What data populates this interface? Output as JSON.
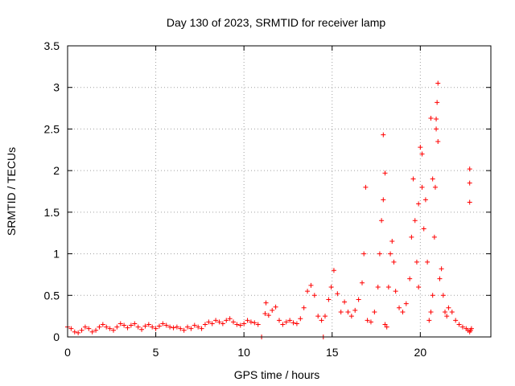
{
  "chart_data": {
    "type": "scatter",
    "title": "Day 130 of 2023, SRMTID for receiver lamp",
    "xlabel": "GPS time / hours",
    "ylabel": "SRMTID / TECUs",
    "xlim": [
      0,
      24
    ],
    "ylim": [
      0,
      3.5
    ],
    "x_ticks": [
      0,
      5,
      10,
      15,
      20
    ],
    "x_tick_labels": [
      "0",
      "5",
      "10",
      "15",
      "20"
    ],
    "y_ticks": [
      0,
      0.5,
      1,
      1.5,
      2,
      2.5,
      3,
      3.5
    ],
    "y_tick_labels": [
      "0",
      "0.5",
      "1",
      "1.5",
      "2",
      "2.5",
      "3",
      "3.5"
    ],
    "grid": true,
    "marker": "+",
    "color": "#ff0000",
    "series": [
      {
        "name": "SRMTID",
        "x": [
          0.0,
          0.2,
          0.4,
          0.6,
          0.8,
          1.0,
          1.2,
          1.4,
          1.6,
          1.8,
          2.0,
          2.2,
          2.4,
          2.6,
          2.8,
          3.0,
          3.2,
          3.4,
          3.6,
          3.8,
          4.0,
          4.2,
          4.4,
          4.6,
          4.8,
          5.0,
          5.2,
          5.4,
          5.6,
          5.8,
          6.0,
          6.2,
          6.4,
          6.6,
          6.8,
          7.0,
          7.2,
          7.4,
          7.6,
          7.8,
          8.0,
          8.2,
          8.4,
          8.6,
          8.8,
          9.0,
          9.2,
          9.4,
          9.6,
          9.8,
          10.0,
          10.2,
          10.4,
          10.6,
          10.8,
          11.2,
          11.4,
          11.6,
          11.8,
          12.0,
          12.2,
          12.4,
          12.6,
          12.8,
          13.0,
          13.2,
          13.4,
          13.6,
          13.8,
          14.0,
          14.2,
          14.4,
          14.6,
          14.8,
          14.95,
          15.1,
          15.3,
          15.5,
          15.7,
          15.9,
          16.1,
          16.3,
          16.5,
          16.7,
          16.8,
          16.9,
          17.0,
          17.2,
          17.4,
          17.6,
          17.7,
          17.8,
          17.9,
          18.0,
          18.1,
          18.2,
          18.3,
          18.4,
          18.5,
          18.6,
          18.8,
          19.0,
          19.2,
          19.4,
          19.5,
          19.6,
          19.7,
          19.8,
          19.9,
          20.0,
          20.1,
          20.2,
          20.3,
          20.4,
          20.5,
          20.6,
          20.7,
          20.8,
          20.85,
          20.9,
          20.95,
          21.0,
          21.1,
          21.2,
          21.3,
          21.4,
          21.5,
          21.6,
          21.8,
          22.0,
          22.2,
          22.4,
          22.6,
          22.7,
          22.8,
          22.85,
          22.9,
          11.0,
          11.25,
          14.5,
          17.9,
          18.0,
          20.6,
          21.0,
          20.9,
          20.7,
          22.8,
          22.8,
          22.8,
          20.1,
          19.9
        ],
        "y": [
          0.12,
          0.1,
          0.06,
          0.05,
          0.08,
          0.12,
          0.1,
          0.06,
          0.08,
          0.12,
          0.15,
          0.12,
          0.1,
          0.08,
          0.12,
          0.16,
          0.14,
          0.11,
          0.14,
          0.16,
          0.12,
          0.09,
          0.13,
          0.15,
          0.12,
          0.1,
          0.13,
          0.16,
          0.14,
          0.12,
          0.11,
          0.12,
          0.1,
          0.08,
          0.12,
          0.1,
          0.14,
          0.12,
          0.1,
          0.15,
          0.18,
          0.16,
          0.2,
          0.18,
          0.16,
          0.2,
          0.22,
          0.18,
          0.15,
          0.14,
          0.16,
          0.2,
          0.18,
          0.17,
          0.15,
          0.28,
          0.26,
          0.32,
          0.36,
          0.2,
          0.15,
          0.18,
          0.2,
          0.17,
          0.16,
          0.22,
          0.35,
          0.55,
          0.62,
          0.5,
          0.25,
          0.2,
          0.25,
          0.45,
          0.6,
          0.8,
          0.52,
          0.3,
          0.42,
          0.3,
          0.25,
          0.32,
          0.45,
          0.65,
          1.0,
          1.8,
          0.2,
          0.18,
          0.3,
          0.6,
          1.0,
          1.4,
          1.65,
          0.15,
          0.12,
          0.6,
          1.0,
          1.15,
          0.9,
          0.55,
          0.35,
          0.3,
          0.4,
          0.7,
          1.2,
          1.9,
          1.4,
          0.9,
          0.6,
          2.28,
          1.8,
          1.3,
          1.65,
          0.9,
          0.2,
          0.3,
          0.5,
          1.2,
          1.8,
          2.5,
          2.82,
          3.05,
          0.7,
          0.82,
          0.5,
          0.3,
          0.25,
          0.35,
          0.3,
          0.2,
          0.15,
          0.12,
          0.1,
          0.08,
          0.06,
          0.08,
          0.1,
          0.0,
          0.41,
          0.0,
          2.43,
          1.97,
          2.63,
          2.35,
          2.62,
          1.9,
          2.02,
          1.85,
          1.62,
          2.2,
          1.6
        ]
      }
    ]
  }
}
